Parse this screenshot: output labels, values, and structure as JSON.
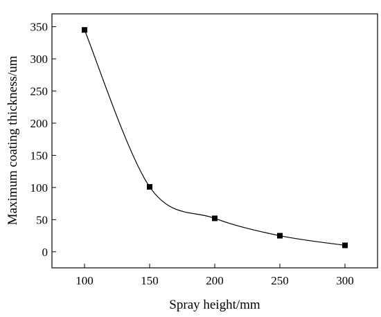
{
  "chart_data": {
    "type": "line",
    "title": "",
    "xlabel": "Spray height/mm",
    "ylabel": "Maximum coating thickness/um",
    "x": [
      100,
      150,
      200,
      250,
      300
    ],
    "series": [
      {
        "values": [
          345,
          101,
          52,
          25,
          10
        ]
      }
    ],
    "xlim": [
      75,
      325
    ],
    "ylim": [
      -25,
      370
    ],
    "xticks": [
      100,
      150,
      200,
      250,
      300
    ],
    "yticks": [
      0,
      50,
      100,
      150,
      200,
      250,
      300,
      350
    ],
    "marker": "square",
    "smooth_line": true,
    "grid": false,
    "legend": "none",
    "colors": {
      "line": "#000000",
      "marker": "#000000"
    }
  }
}
